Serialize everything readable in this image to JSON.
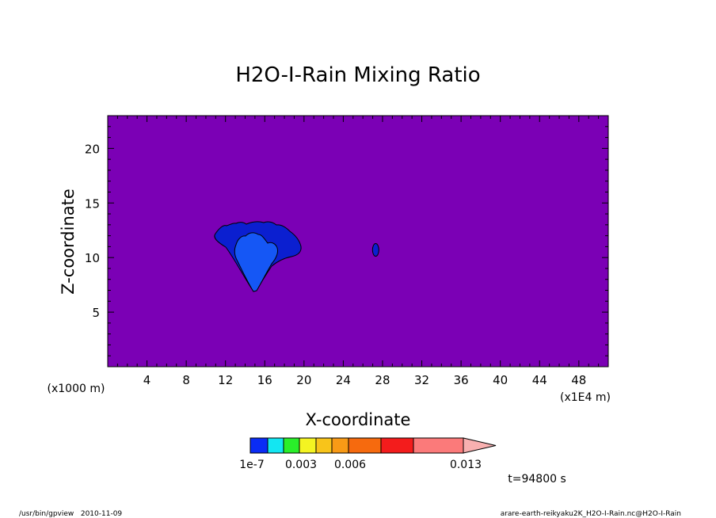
{
  "chart_data": {
    "type": "heatmap",
    "title": "H2O-I-Rain Mixing Ratio",
    "xlabel": "X-coordinate",
    "ylabel": "Z-coordinate",
    "x_unit": "(x1E4 m)",
    "y_unit": "(x1000 m)",
    "xlim": [
      0,
      51
    ],
    "ylim": [
      0,
      23
    ],
    "x_ticks": [
      4,
      8,
      12,
      16,
      20,
      24,
      28,
      32,
      36,
      40,
      44,
      48
    ],
    "y_ticks": [
      5,
      10,
      15,
      20
    ],
    "background_color": "#7b00b5",
    "colorbar": {
      "colors": [
        "#0a2cf5",
        "#13e6f2",
        "#2aef2a",
        "#f4f422",
        "#f8c41a",
        "#f89a16",
        "#f66a0e",
        "#f31c1c",
        "#fb7a7a",
        "#f8b0b0"
      ],
      "labels": [
        "1e-7",
        "0.003",
        "0.006",
        "0.013"
      ]
    },
    "features": [
      {
        "region": "outer",
        "color": "#0b1fd0",
        "x_range": [
          11.2,
          19.8
        ],
        "z_range": [
          6.9,
          13.2
        ]
      },
      {
        "region": "inner",
        "color": "#1557f5",
        "x_range": [
          13.0,
          17.8
        ],
        "z_range": [
          6.9,
          12.8
        ]
      },
      {
        "region": "blob",
        "color": "#0b1fd0",
        "x_center": 27.3,
        "z_center": 10.7
      }
    ]
  },
  "time_label": "t=94800 s",
  "footer": {
    "left": "/usr/bin/gpview   2010-11-09",
    "right": "arare-earth-reikyaku2K_H2O-I-Rain.nc@H2O-I-Rain"
  }
}
